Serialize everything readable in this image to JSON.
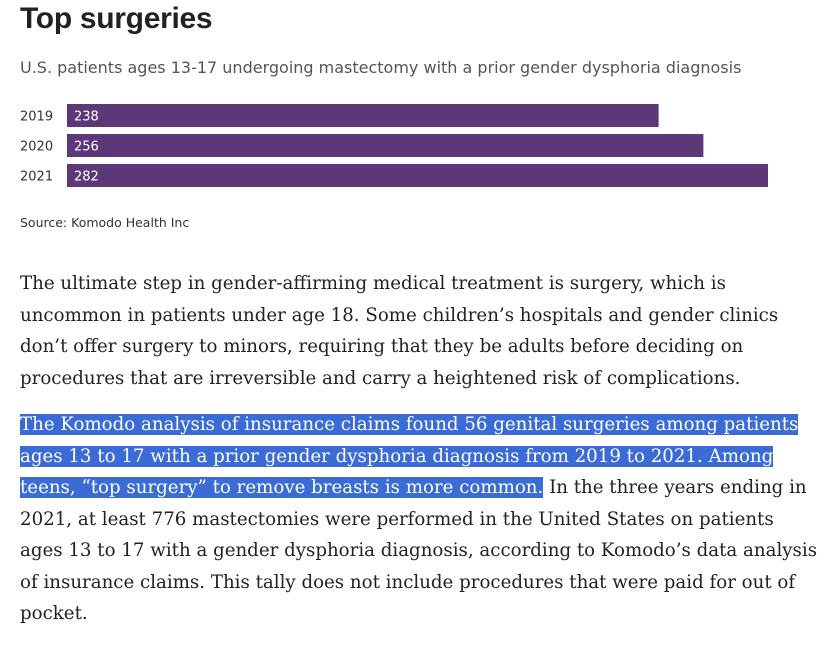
{
  "chart_data": {
    "type": "bar",
    "orientation": "horizontal",
    "title": "Top surgeries",
    "subtitle": "U.S. patients ages 13-17 undergoing mastectomy with a prior gender dysphoria diagnosis",
    "categories": [
      "2019",
      "2020",
      "2021"
    ],
    "values": [
      238,
      256,
      282
    ],
    "value_labels": [
      "238",
      "256",
      "282"
    ],
    "xlim": [
      0,
      282
    ],
    "xlabel": "",
    "ylabel": "",
    "grid": false,
    "bar_color": "#5c3878",
    "source": "Source: Komodo Health Inc"
  },
  "article": {
    "paragraph1": "The ultimate step in gender-affirming medical treatment is surgery, which is uncommon in patients under age 18. Some children’s hospitals and gender clinics don’t offer surgery to minors, requiring that they be adults before deciding on procedures that are irreversible and carry a heightened risk of complications.",
    "paragraph2_highlighted": "The Komodo analysis of insurance claims found 56 genital surgeries among patients ages 13 to 17 with a prior gender dysphoria diagnosis from 2019 to 2021. Among teens, “top surgery” to remove breasts is more common.",
    "paragraph2_rest": " In the three years ending in 2021, at least 776 mastectomies were performed in the United States on patients ages 13 to 17 with a gender dysphoria diagnosis, according to Komodo’s data analysis of insurance claims. This tally does not include procedures that were paid for out of pocket."
  },
  "colors": {
    "highlight": "#3b6bd4",
    "highlight_text": "#ffffff",
    "bar": "#5c3878"
  }
}
